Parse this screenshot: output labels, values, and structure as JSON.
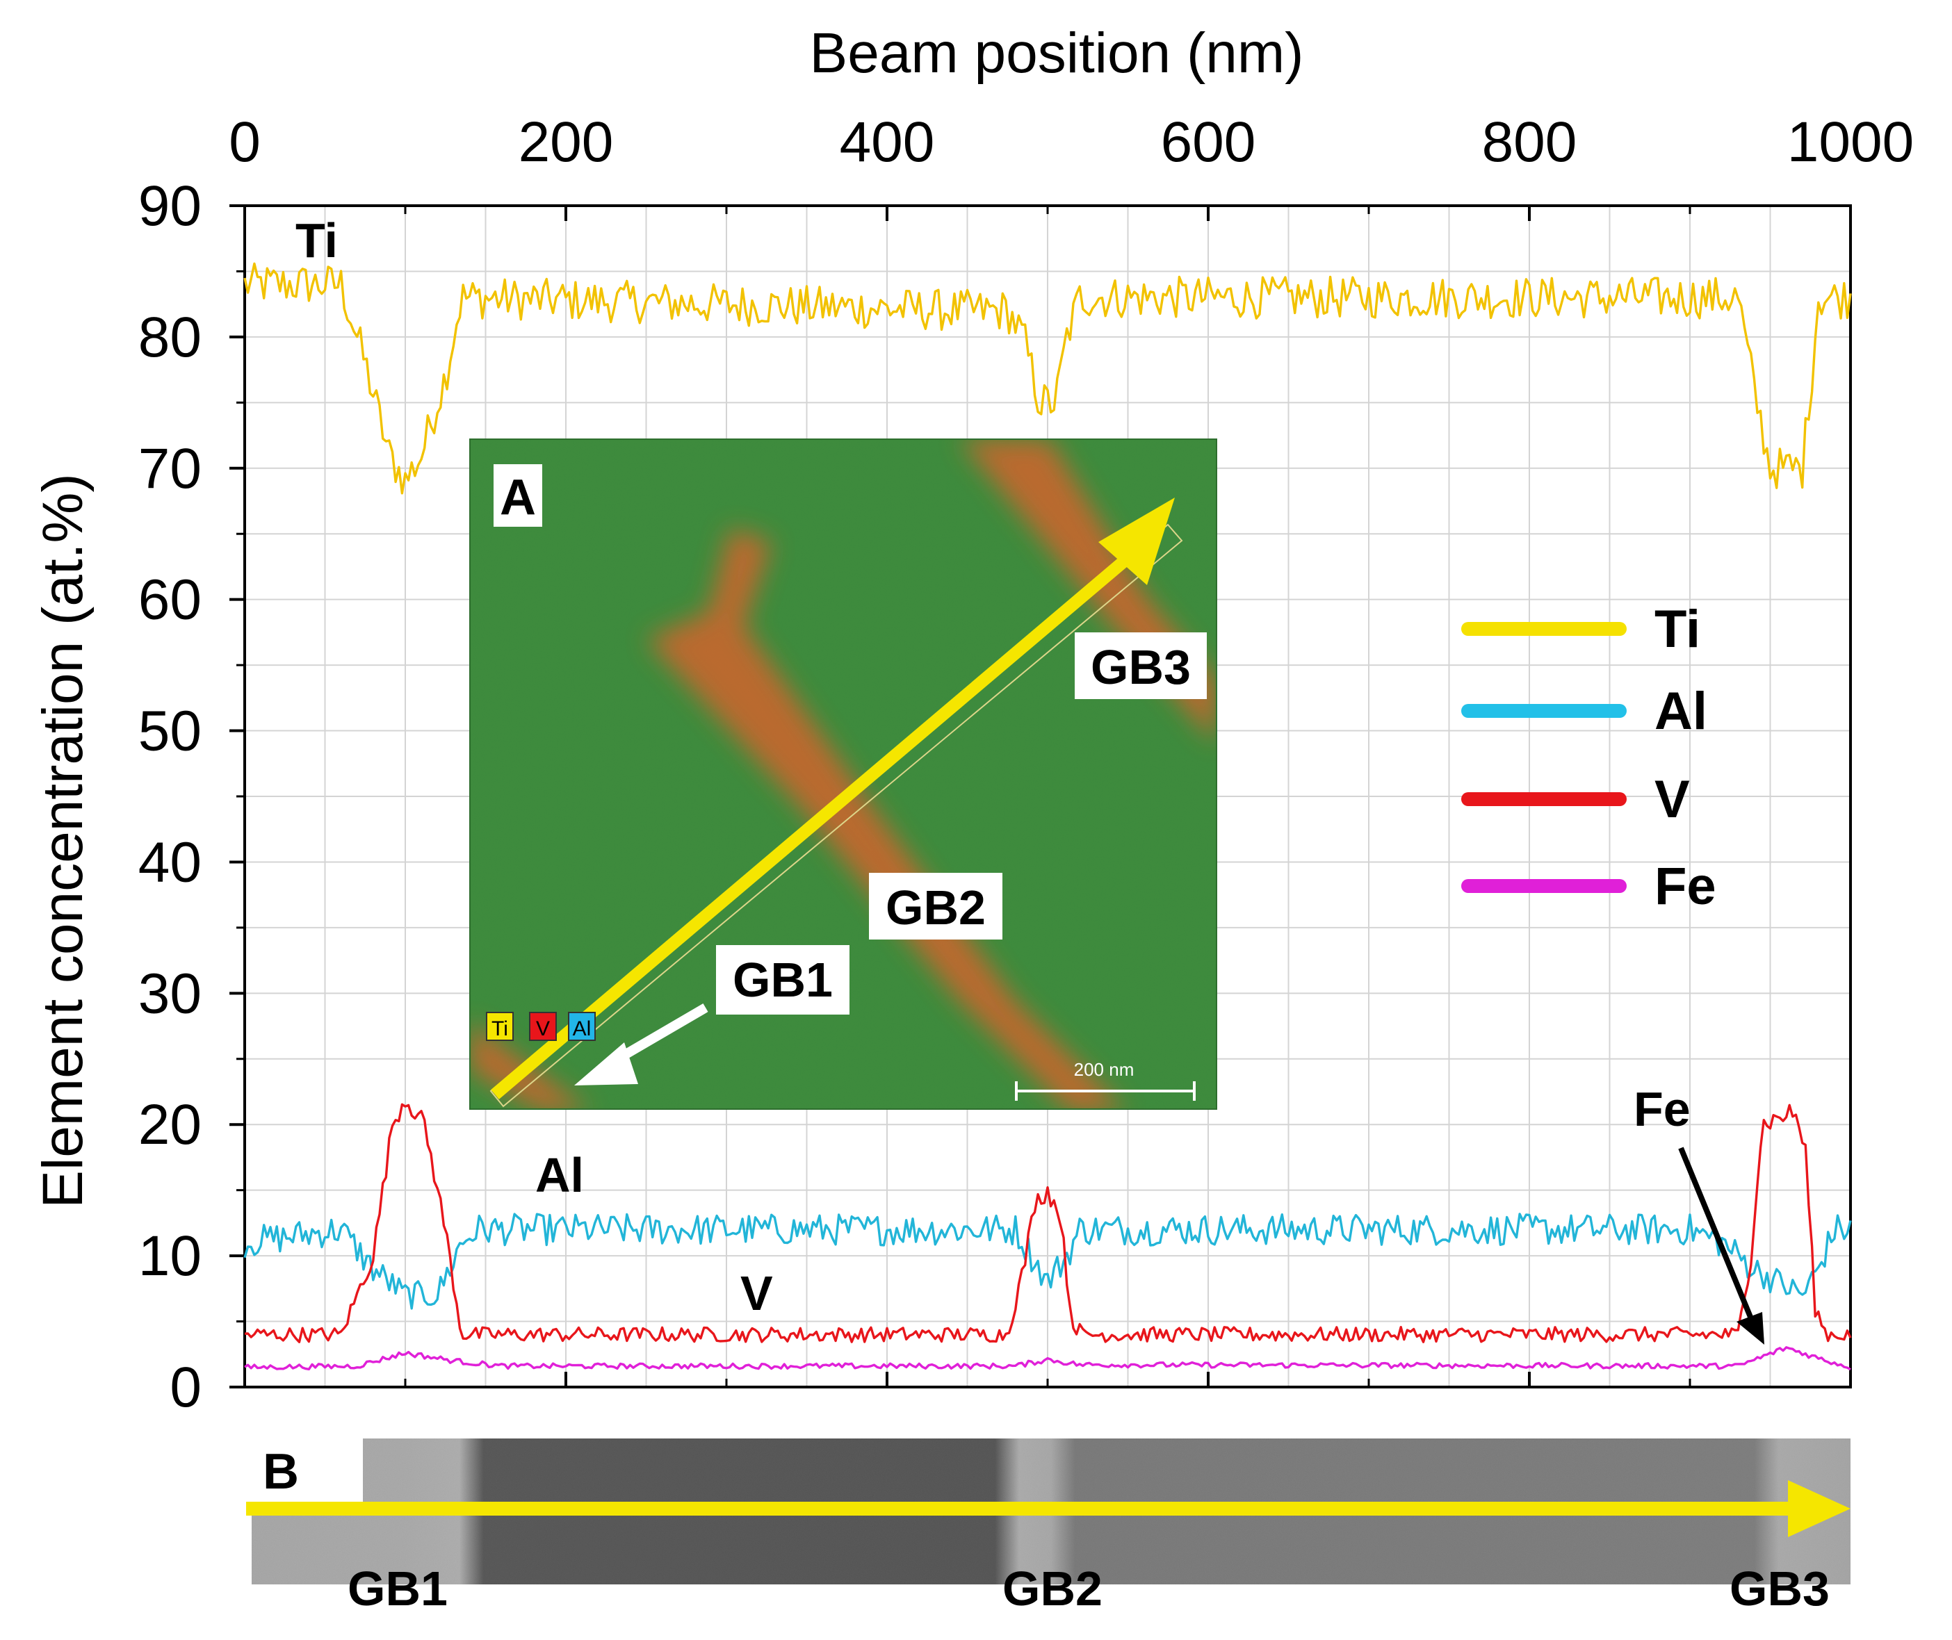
{
  "chart_data": {
    "type": "line",
    "xlabel": "Beam position (nm)",
    "ylabel": "Element concentration (at.%)",
    "xlim": [
      0,
      1000
    ],
    "ylim": [
      0,
      90
    ],
    "x_ticks": [
      "0",
      "200",
      "400",
      "600",
      "800",
      "1000"
    ],
    "y_ticks": [
      "0",
      "10",
      "20",
      "30",
      "40",
      "50",
      "60",
      "70",
      "80",
      "90"
    ],
    "grid": true,
    "legend_position": "right",
    "series": [
      {
        "name": "Ti",
        "color": "#f2c200",
        "legend_color": "#f5e100",
        "profile": [
          [
            0,
            84
          ],
          [
            60,
            84
          ],
          [
            75,
            78
          ],
          [
            90,
            71
          ],
          [
            100,
            69
          ],
          [
            110,
            71
          ],
          [
            125,
            77
          ],
          [
            135,
            83
          ],
          [
            450,
            82
          ],
          [
            475,
            82
          ],
          [
            485,
            80
          ],
          [
            495,
            75
          ],
          [
            505,
            75
          ],
          [
            512,
            80
          ],
          [
            520,
            83
          ],
          [
            910,
            83
          ],
          [
            930,
            83
          ],
          [
            940,
            76
          ],
          [
            950,
            70
          ],
          [
            970,
            70
          ],
          [
            975,
            76
          ],
          [
            980,
            83
          ],
          [
            1000,
            83
          ]
        ]
      },
      {
        "name": "Al",
        "color": "#22b5d8",
        "legend_color": "#22c0e8",
        "profile": [
          [
            0,
            11
          ],
          [
            60,
            12
          ],
          [
            80,
            9
          ],
          [
            100,
            7
          ],
          [
            120,
            7
          ],
          [
            135,
            11
          ],
          [
            145,
            12
          ],
          [
            480,
            12
          ],
          [
            490,
            10
          ],
          [
            500,
            8
          ],
          [
            512,
            10
          ],
          [
            520,
            12
          ],
          [
            900,
            12
          ],
          [
            920,
            11
          ],
          [
            940,
            9
          ],
          [
            970,
            7
          ],
          [
            980,
            9
          ],
          [
            990,
            12
          ],
          [
            1000,
            12
          ]
        ]
      },
      {
        "name": "V",
        "color": "#e8161b",
        "legend_color": "#e8161b",
        "profile": [
          [
            0,
            4
          ],
          [
            60,
            4
          ],
          [
            80,
            10
          ],
          [
            92,
            20
          ],
          [
            100,
            22
          ],
          [
            112,
            20
          ],
          [
            125,
            12
          ],
          [
            135,
            4
          ],
          [
            475,
            4
          ],
          [
            485,
            9
          ],
          [
            492,
            14
          ],
          [
            500,
            15
          ],
          [
            508,
            13
          ],
          [
            515,
            5
          ],
          [
            522,
            4
          ],
          [
            930,
            4
          ],
          [
            938,
            10
          ],
          [
            945,
            20
          ],
          [
            965,
            21
          ],
          [
            972,
            18
          ],
          [
            978,
            6
          ],
          [
            985,
            4
          ],
          [
            1000,
            4
          ]
        ]
      },
      {
        "name": "Fe",
        "color": "#e020d8",
        "legend_color": "#e020d8",
        "profile": [
          [
            0,
            1.5
          ],
          [
            70,
            1.6
          ],
          [
            100,
            2.6
          ],
          [
            130,
            2.0
          ],
          [
            160,
            1.6
          ],
          [
            480,
            1.6
          ],
          [
            500,
            2.1
          ],
          [
            520,
            1.7
          ],
          [
            930,
            1.6
          ],
          [
            960,
            3.0
          ],
          [
            980,
            2.2
          ],
          [
            1000,
            1.5
          ]
        ]
      }
    ],
    "annotations": {
      "curve_labels": [
        "Ti",
        "Al",
        "V",
        "Fe"
      ],
      "inset_a_label": "A",
      "inset_b_label": "B",
      "grain_boundaries": [
        "GB1",
        "GB2",
        "GB3"
      ],
      "inset_a_chips": [
        "Ti",
        "V",
        "Al"
      ],
      "inset_a_scalebar": "200 nm"
    }
  }
}
